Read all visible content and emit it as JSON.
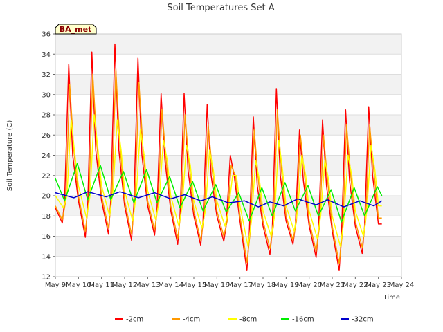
{
  "chart_data": {
    "type": "line",
    "title": "Soil Temperatures Set A",
    "xlabel": "Time",
    "ylabel": "Soil Temperature (C)",
    "station_label": "BA_met",
    "ylim": [
      12,
      36
    ],
    "yticks": [
      12,
      14,
      16,
      18,
      20,
      22,
      24,
      26,
      28,
      30,
      32,
      34,
      36
    ],
    "xlim": [
      9,
      24
    ],
    "xticks": [
      9,
      10,
      11,
      12,
      13,
      14,
      15,
      16,
      17,
      18,
      19,
      20,
      21,
      22,
      23,
      24
    ],
    "xtick_labels": [
      "May 9",
      "May 10",
      "May 11",
      "May 12",
      "May 13",
      "May 14",
      "May 15",
      "May 16",
      "May 17",
      "May 18",
      "May 19",
      "May 20",
      "May 21",
      "May 22",
      "May 23",
      "May 24"
    ],
    "x_unit": "day of May",
    "grid": "horizontal bands",
    "legend_position": "bottom",
    "series": [
      {
        "name": "-2cm",
        "color": "#ff0000",
        "x": [
          9.0,
          9.3,
          9.4,
          9.58,
          9.75,
          10.0,
          10.3,
          10.4,
          10.58,
          10.75,
          11.0,
          11.3,
          11.4,
          11.58,
          11.75,
          12.0,
          12.3,
          12.4,
          12.58,
          12.75,
          13.0,
          13.3,
          13.4,
          13.58,
          13.75,
          14.0,
          14.3,
          14.4,
          14.58,
          14.75,
          15.0,
          15.3,
          15.4,
          15.58,
          15.75,
          16.0,
          16.3,
          16.4,
          16.58,
          16.75,
          17.0,
          17.3,
          17.4,
          17.58,
          17.75,
          18.0,
          18.3,
          18.4,
          18.58,
          18.75,
          19.0,
          19.3,
          19.4,
          19.58,
          19.75,
          20.0,
          20.3,
          20.4,
          20.58,
          20.75,
          21.0,
          21.3,
          21.4,
          21.58,
          21.75,
          22.0,
          22.3,
          22.4,
          22.58,
          22.75,
          23.0,
          23.15
        ],
        "y": [
          18.8,
          17.3,
          19.5,
          33.0,
          24.0,
          19.5,
          15.9,
          19.0,
          34.2,
          24.5,
          19.5,
          16.2,
          19.5,
          35.0,
          24.5,
          19.0,
          15.6,
          19.0,
          33.6,
          24.0,
          19.0,
          16.1,
          18.5,
          30.1,
          23.5,
          18.5,
          15.2,
          18.0,
          30.1,
          22.5,
          18.0,
          15.1,
          17.5,
          29.0,
          22.0,
          18.0,
          15.5,
          17.0,
          24.0,
          22.0,
          17.5,
          12.6,
          16.0,
          27.8,
          21.0,
          17.0,
          14.2,
          16.5,
          30.6,
          22.0,
          17.5,
          15.2,
          17.0,
          26.5,
          21.5,
          17.0,
          13.9,
          16.5,
          27.5,
          21.0,
          16.5,
          12.6,
          16.0,
          28.5,
          21.5,
          17.0,
          14.3,
          17.0,
          28.8,
          22.0,
          17.2,
          17.2
        ]
      },
      {
        "name": "-4cm",
        "color": "#ff9900",
        "x": [
          9.0,
          9.3,
          9.45,
          9.62,
          9.8,
          10.0,
          10.3,
          10.45,
          10.62,
          10.8,
          11.0,
          11.3,
          11.45,
          11.62,
          11.8,
          12.0,
          12.3,
          12.45,
          12.62,
          12.8,
          13.0,
          13.3,
          13.45,
          13.62,
          13.8,
          14.0,
          14.3,
          14.45,
          14.62,
          14.8,
          15.0,
          15.3,
          15.45,
          15.62,
          15.8,
          16.0,
          16.3,
          16.45,
          16.62,
          16.8,
          17.0,
          17.3,
          17.45,
          17.62,
          17.8,
          18.0,
          18.3,
          18.45,
          18.62,
          18.8,
          19.0,
          19.3,
          19.45,
          19.62,
          19.8,
          20.0,
          20.3,
          20.45,
          20.62,
          20.8,
          21.0,
          21.3,
          21.45,
          21.62,
          21.8,
          22.0,
          22.3,
          22.45,
          22.62,
          22.8,
          23.0,
          23.15
        ],
        "y": [
          19.0,
          17.6,
          19.5,
          31.0,
          24.5,
          20.0,
          16.5,
          19.5,
          32.0,
          25.0,
          20.0,
          16.8,
          20.0,
          32.5,
          25.0,
          19.5,
          16.2,
          19.5,
          31.2,
          24.5,
          19.5,
          16.6,
          19.0,
          28.5,
          23.5,
          19.0,
          15.8,
          18.5,
          28.0,
          23.0,
          18.5,
          15.6,
          18.0,
          27.0,
          22.5,
          18.5,
          16.0,
          17.5,
          23.0,
          22.0,
          18.0,
          13.4,
          16.5,
          26.5,
          21.5,
          17.5,
          14.8,
          17.0,
          28.5,
          22.5,
          18.0,
          15.6,
          17.5,
          26.0,
          22.0,
          17.5,
          14.5,
          17.0,
          26.0,
          21.5,
          17.0,
          13.3,
          16.5,
          27.0,
          22.0,
          17.5,
          14.9,
          17.5,
          27.0,
          22.5,
          17.8,
          17.8
        ]
      },
      {
        "name": "-8cm",
        "color": "#ffff00",
        "x": [
          9.0,
          9.35,
          9.5,
          9.68,
          9.85,
          10.0,
          10.35,
          10.5,
          10.68,
          10.85,
          11.0,
          11.35,
          11.5,
          11.68,
          11.85,
          12.0,
          12.35,
          12.5,
          12.68,
          12.85,
          13.0,
          13.35,
          13.5,
          13.68,
          13.85,
          14.0,
          14.35,
          14.5,
          14.68,
          14.85,
          15.0,
          15.35,
          15.5,
          15.68,
          15.85,
          16.0,
          16.35,
          16.5,
          16.68,
          16.85,
          17.0,
          17.35,
          17.5,
          17.68,
          17.85,
          18.0,
          18.35,
          18.5,
          18.68,
          18.85,
          19.0,
          19.35,
          19.5,
          19.68,
          19.85,
          20.0,
          20.35,
          20.5,
          20.68,
          20.85,
          21.0,
          21.35,
          21.5,
          21.68,
          21.85,
          22.0,
          22.35,
          22.5,
          22.68,
          22.85,
          23.0,
          23.15
        ],
        "y": [
          20.0,
          18.8,
          20.0,
          27.5,
          24.0,
          21.0,
          17.8,
          20.0,
          28.0,
          24.5,
          21.0,
          18.0,
          20.5,
          27.5,
          24.5,
          20.5,
          17.5,
          20.0,
          26.5,
          24.0,
          20.5,
          17.6,
          19.5,
          25.5,
          23.5,
          20.0,
          17.0,
          19.0,
          25.0,
          23.0,
          19.5,
          16.8,
          18.5,
          24.5,
          22.5,
          19.5,
          17.0,
          18.5,
          22.0,
          22.0,
          19.0,
          15.0,
          17.5,
          23.5,
          21.5,
          18.5,
          16.0,
          18.0,
          25.5,
          22.5,
          19.0,
          16.5,
          18.5,
          24.0,
          22.0,
          18.5,
          15.8,
          18.0,
          23.5,
          21.5,
          18.0,
          15.0,
          17.5,
          24.0,
          22.0,
          18.5,
          16.0,
          18.5,
          25.0,
          22.5,
          19.0,
          19.0
        ]
      },
      {
        "name": "-16cm",
        "color": "#00ee00",
        "x": [
          9.0,
          9.4,
          9.95,
          10.4,
          10.95,
          11.4,
          11.95,
          12.4,
          12.95,
          13.4,
          13.95,
          14.4,
          14.95,
          15.4,
          15.95,
          16.4,
          16.95,
          17.4,
          17.95,
          18.4,
          18.95,
          19.4,
          19.95,
          20.4,
          20.95,
          21.4,
          21.95,
          22.4,
          22.95,
          23.15
        ],
        "y": [
          21.7,
          19.5,
          23.2,
          19.6,
          23.0,
          19.6,
          22.4,
          19.3,
          22.6,
          19.3,
          21.9,
          18.8,
          21.4,
          18.5,
          21.1,
          18.4,
          20.3,
          17.5,
          20.8,
          18.0,
          21.3,
          18.5,
          21.0,
          18.0,
          20.6,
          17.4,
          20.8,
          18.0,
          20.9,
          20.0
        ]
      },
      {
        "name": "-32cm",
        "color": "#0000cc",
        "x": [
          9.0,
          9.8,
          10.4,
          11.2,
          11.8,
          12.6,
          13.3,
          14.0,
          14.6,
          15.3,
          15.8,
          16.5,
          17.2,
          17.8,
          18.3,
          18.9,
          19.5,
          20.3,
          20.8,
          21.5,
          22.2,
          22.8,
          23.15
        ],
        "y": [
          20.3,
          19.8,
          20.4,
          19.9,
          20.4,
          19.8,
          20.3,
          19.7,
          20.1,
          19.5,
          19.9,
          19.3,
          19.5,
          18.9,
          19.4,
          19.0,
          19.7,
          19.1,
          19.6,
          18.9,
          19.5,
          19.0,
          19.5
        ]
      }
    ]
  }
}
